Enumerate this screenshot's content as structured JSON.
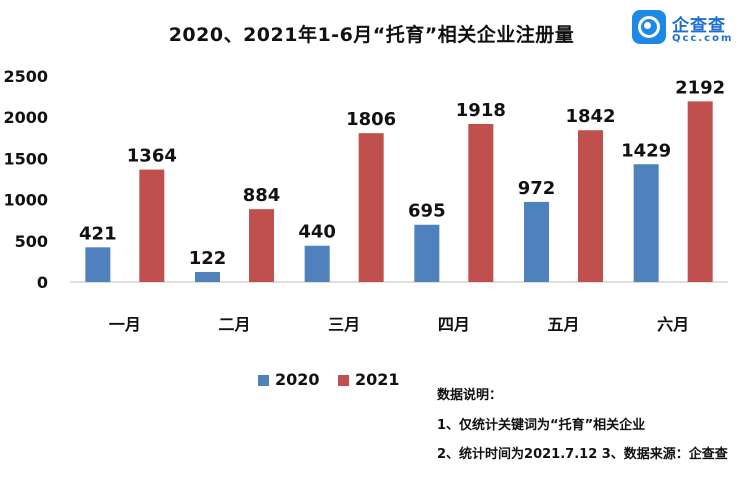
{
  "title": "2020、2021年1-6月“托育”相关企业注册量",
  "logo": {
    "name": "企查查",
    "domain": "Qcc.com",
    "color": "#1e88e5"
  },
  "chart_data": {
    "type": "bar",
    "categories": [
      "一月",
      "二月",
      "三月",
      "四月",
      "五月",
      "六月"
    ],
    "series": [
      {
        "name": "2020",
        "color": "#4f81bd",
        "values": [
          421,
          122,
          440,
          695,
          972,
          1429
        ]
      },
      {
        "name": "2021",
        "color": "#c0504d",
        "values": [
          1364,
          884,
          1806,
          1918,
          1842,
          2192
        ]
      }
    ],
    "ylim": [
      0,
      2500
    ],
    "yticks": [
      "2500",
      "2000",
      "1500",
      "1000",
      "500",
      "0"
    ],
    "grid": false,
    "legend": "bottom",
    "data_labels": true
  },
  "notes": {
    "heading": "数据说明：",
    "line1": "1、仅统计关键词为“托育”相关企业",
    "line2": "2、统计时间为2021.7.12  3、数据来源：企查查"
  }
}
